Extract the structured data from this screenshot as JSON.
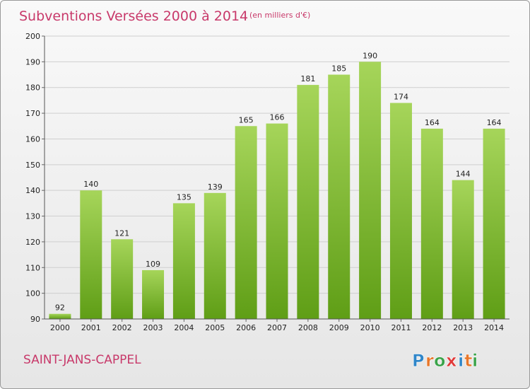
{
  "header": {
    "title": "Subventions Versées 2000 à 2014",
    "subtitle": "(en milliers d'€)"
  },
  "commune": "SAINT-JANS-CAPPEL",
  "logo": {
    "text": "Proxiti",
    "letters": [
      "P",
      "r",
      "o",
      "x",
      "i",
      "t",
      "i"
    ],
    "colors": [
      "#2f86c9",
      "#e8772a",
      "#3aa34a",
      "#e03a3a",
      "#2f86c9",
      "#e8772a",
      "#3aa34a"
    ]
  },
  "colors": {
    "bar_light": "#a6d55a",
    "bar_dark": "#5f9e16",
    "title": "#c8396a"
  },
  "chart_data": {
    "type": "bar",
    "title": "Subventions Versées 2000 à 2014",
    "subtitle": "(en milliers d'€)",
    "xlabel": "",
    "ylabel": "",
    "categories": [
      "2000",
      "2001",
      "2002",
      "2003",
      "2004",
      "2005",
      "2006",
      "2007",
      "2008",
      "2009",
      "2010",
      "2011",
      "2012",
      "2013",
      "2014"
    ],
    "values": [
      92,
      140,
      121,
      109,
      135,
      139,
      165,
      166,
      181,
      185,
      190,
      174,
      164,
      144,
      164
    ],
    "ylim": [
      90,
      200
    ],
    "yticks": [
      90,
      100,
      110,
      120,
      130,
      140,
      150,
      160,
      170,
      180,
      190,
      200
    ],
    "grid": true,
    "legend": "none"
  }
}
